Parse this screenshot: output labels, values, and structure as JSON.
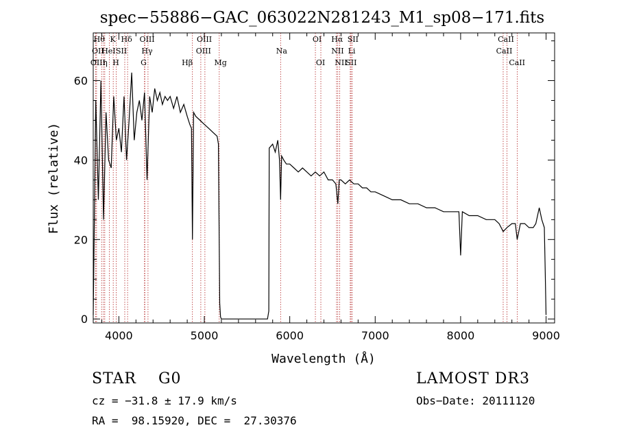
{
  "chart_data": {
    "type": "line",
    "title": "spec−55886−GAC_063022N281243_M1_sp08−171.fits",
    "xlabel": "Wavelength (Å)",
    "ylabel": "Flux (relative)",
    "xlim": [
      3700,
      9100
    ],
    "ylim": [
      -1,
      72
    ],
    "xticks": [
      4000,
      5000,
      6000,
      7000,
      8000,
      9000
    ],
    "yticks": [
      0,
      20,
      40,
      60
    ],
    "grid": false,
    "series": [
      {
        "name": "spectrum",
        "x": [
          3700,
          3730,
          3760,
          3790,
          3820,
          3850,
          3880,
          3910,
          3940,
          3970,
          4000,
          4030,
          4060,
          4090,
          4120,
          4150,
          4180,
          4210,
          4240,
          4270,
          4300,
          4330,
          4360,
          4390,
          4420,
          4450,
          4480,
          4510,
          4540,
          4570,
          4600,
          4640,
          4680,
          4720,
          4760,
          4800,
          4830,
          4850,
          4861,
          4875,
          4900,
          4950,
          5000,
          5050,
          5100,
          5150,
          5165,
          5180,
          5190,
          5200,
          5400,
          5600,
          5740,
          5755,
          5760,
          5800,
          5830,
          5860,
          5880,
          5893,
          5905,
          5930,
          5960,
          6000,
          6050,
          6100,
          6150,
          6200,
          6250,
          6300,
          6350,
          6400,
          6450,
          6500,
          6540,
          6563,
          6580,
          6600,
          6650,
          6700,
          6750,
          6800,
          6850,
          6900,
          6950,
          7000,
          7100,
          7200,
          7300,
          7400,
          7500,
          7600,
          7700,
          7800,
          7900,
          7980,
          8000,
          8020,
          8100,
          8200,
          8300,
          8400,
          8450,
          8498,
          8542,
          8600,
          8640,
          8662,
          8700,
          8750,
          8800,
          8850,
          8880,
          8920,
          8950,
          8980,
          8990,
          9000
        ],
        "y": [
          1,
          55,
          30,
          60,
          25,
          52,
          40,
          38,
          56,
          45,
          48,
          42,
          56,
          40,
          50,
          62,
          45,
          52,
          55,
          50,
          57,
          35,
          56,
          52,
          58,
          55,
          57,
          54,
          56,
          55,
          56,
          53,
          56,
          52,
          54,
          51,
          49,
          48,
          20,
          52,
          51,
          50,
          49,
          48,
          47,
          46,
          44,
          4,
          0.5,
          0,
          0,
          0,
          0,
          2,
          43,
          44,
          42,
          45,
          40,
          30,
          41,
          40,
          39,
          39,
          38,
          37,
          38,
          37,
          36,
          37,
          36,
          37,
          35,
          35,
          34,
          29,
          35,
          35,
          34,
          35,
          34,
          34,
          33,
          33,
          32,
          32,
          31,
          30,
          30,
          29,
          29,
          28,
          28,
          27,
          27,
          27,
          16,
          27,
          26,
          26,
          25,
          25,
          24,
          22,
          23,
          24,
          24,
          20,
          24,
          24,
          23,
          23,
          24,
          28,
          25,
          23,
          12,
          1
        ]
      }
    ],
    "line_markers": [
      {
        "name": "Hθ",
        "wave": 3798
      },
      {
        "name": "OII",
        "wave": 3727
      },
      {
        "name": "OIII",
        "wave": 3739
      },
      {
        "name": "He",
        "wave": 3820
      },
      {
        "name": "K",
        "wave": 3934
      },
      {
        "name": "HeI",
        "wave": 3889
      },
      {
        "name": "η",
        "wave": 3835
      },
      {
        "name": "H",
        "wave": 3970
      },
      {
        "name": "SII",
        "wave": 4069
      },
      {
        "name": "Hδ",
        "wave": 4102
      },
      {
        "name": "OIII",
        "wave": 4300
      },
      {
        "name": "Hγ",
        "wave": 4341
      },
      {
        "name": "G",
        "wave": 4304
      },
      {
        "name": "Hβ",
        "wave": 4861
      },
      {
        "name": "OIII",
        "wave": 4959
      },
      {
        "name": "OIII",
        "wave": 5007
      },
      {
        "name": "Mg",
        "wave": 5175
      },
      {
        "name": "Na",
        "wave": 5893
      },
      {
        "name": "OI",
        "wave": 6300
      },
      {
        "name": "OI",
        "wave": 6364
      },
      {
        "name": "Hα",
        "wave": 6563
      },
      {
        "name": "NII",
        "wave": 6548
      },
      {
        "name": "NII",
        "wave": 6584
      },
      {
        "name": "SII",
        "wave": 6717
      },
      {
        "name": "SII",
        "wave": 6731
      },
      {
        "name": "Li",
        "wave": 6708
      },
      {
        "name": "CaII",
        "wave": 8498
      },
      {
        "name": "CaII",
        "wave": 8542
      },
      {
        "name": "CaII",
        "wave": 8662
      }
    ],
    "line_label_rows": [
      [
        {
          "text": "Hθ",
          "wave": 3770
        },
        {
          "text": "K",
          "wave": 3930
        },
        {
          "text": "Hδ",
          "wave": 4090
        },
        {
          "text": "OIII",
          "wave": 4330
        },
        {
          "text": "OIII",
          "wave": 5000
        },
        {
          "text": "OI",
          "wave": 6320
        },
        {
          "text": "Hα",
          "wave": 6555
        },
        {
          "text": "SII",
          "wave": 6740
        },
        {
          "text": "CaII",
          "wave": 8530
        }
      ],
      [
        {
          "text": "OII",
          "wave": 3755
        },
        {
          "text": "HeI",
          "wave": 3880
        },
        {
          "text": "SII",
          "wave": 4030
        },
        {
          "text": "Hγ",
          "wave": 4330
        },
        {
          "text": "OIII",
          "wave": 4990
        },
        {
          "text": "Na",
          "wave": 5905
        },
        {
          "text": "NII",
          "wave": 6560
        },
        {
          "text": "Li",
          "wave": 6725
        },
        {
          "text": "CaII",
          "wave": 8510
        }
      ],
      [
        {
          "text": "OIII",
          "wave": 3755
        },
        {
          "text": "η",
          "wave": 3840
        },
        {
          "text": "H",
          "wave": 3965
        },
        {
          "text": "G",
          "wave": 4290
        },
        {
          "text": "Hβ",
          "wave": 4800
        },
        {
          "text": "Mg",
          "wave": 5190
        },
        {
          "text": "OI",
          "wave": 6360
        },
        {
          "text": "NII",
          "wave": 6600
        },
        {
          "text": "SII",
          "wave": 6720
        },
        {
          "text": "CaII",
          "wave": 8660
        }
      ]
    ]
  },
  "info": {
    "classification": "STAR    G0",
    "cz": "cz = −31.8 ± 17.9 km/s",
    "radec": "RA =  98.15920, DEC =  27.30376",
    "survey": "LAMOST DR3",
    "obs_date": "Obs−Date: 20111120"
  },
  "colors": {
    "spectrum": "#000000",
    "marker": "#b22222",
    "text": "#000000"
  }
}
